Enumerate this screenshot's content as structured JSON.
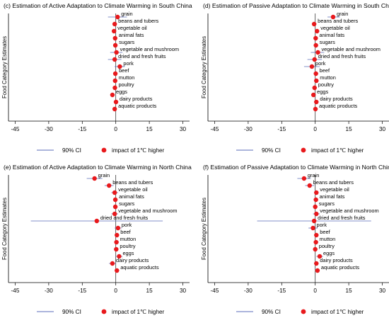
{
  "chart_data": [
    {
      "type": "scatter",
      "title": "(c) Estimation of Active Adaptation to Climate Warming in South China",
      "ylabel": "Food Category Estimates",
      "xlim": [
        -48,
        33
      ],
      "xticks": [
        -45,
        -30,
        -15,
        0,
        15,
        30
      ],
      "reference_line": 0,
      "legend": {
        "position": "bottom",
        "ci_label": "90% CI",
        "point_label": "impact of 1℃ higher"
      },
      "points": [
        {
          "category": "grain",
          "estimate": 0.8,
          "ci_low": -3.5,
          "ci_high": 5.0
        },
        {
          "category": "beans and tubers",
          "estimate": -0.5,
          "ci_low": -1.5,
          "ci_high": 0.5
        },
        {
          "category": "vegetable oil",
          "estimate": -0.8,
          "ci_low": -1.8,
          "ci_high": 0.2
        },
        {
          "category": "animal fats",
          "estimate": -0.3,
          "ci_low": -1.2,
          "ci_high": 0.6
        },
        {
          "category": "sugars",
          "estimate": -0.2,
          "ci_low": -1.0,
          "ci_high": 0.6
        },
        {
          "category": "vegetable and mushroom",
          "estimate": 0.3,
          "ci_low": -2.5,
          "ci_high": 3.0
        },
        {
          "category": "dried and fresh fruits",
          "estimate": -0.5,
          "ci_low": -3.5,
          "ci_high": 2.5
        },
        {
          "category": "pork",
          "estimate": 1.8,
          "ci_low": -0.5,
          "ci_high": 4.0
        },
        {
          "category": "beef",
          "estimate": -0.2,
          "ci_low": -1.0,
          "ci_high": 0.6
        },
        {
          "category": "mutton",
          "estimate": -0.3,
          "ci_low": -1.2,
          "ci_high": 0.6
        },
        {
          "category": "poultry",
          "estimate": -0.4,
          "ci_low": -1.3,
          "ci_high": 0.5
        },
        {
          "category": "eggs",
          "estimate": -1.5,
          "ci_low": -2.5,
          "ci_high": -0.5
        },
        {
          "category": "dairy products",
          "estimate": 0.1,
          "ci_low": -0.8,
          "ci_high": 1.0
        },
        {
          "category": "aquatic products",
          "estimate": -0.5,
          "ci_low": -1.3,
          "ci_high": 0.3
        }
      ]
    },
    {
      "type": "scatter",
      "title": "(d) Estimation of Passive Adaptation to Climate Warming in South China",
      "ylabel": "Food Category Estimates",
      "xlim": [
        -48,
        33
      ],
      "xticks": [
        -45,
        -30,
        -15,
        0,
        15,
        30
      ],
      "reference_line": 0,
      "legend": {
        "position": "bottom",
        "ci_label": "90% CI",
        "point_label": "impact of 1℃ higher"
      },
      "points": [
        {
          "category": "grain",
          "estimate": 8.0,
          "ci_low": 5.5,
          "ci_high": 11.0
        },
        {
          "category": "beans and tubers",
          "estimate": -0.5,
          "ci_low": -1.5,
          "ci_high": 0.5
        },
        {
          "category": "vegetable oil",
          "estimate": 0.8,
          "ci_low": -0.2,
          "ci_high": 1.8
        },
        {
          "category": "animal fats",
          "estimate": 0.2,
          "ci_low": -0.8,
          "ci_high": 1.2
        },
        {
          "category": "sugars",
          "estimate": 0.3,
          "ci_low": -0.7,
          "ci_high": 1.3
        },
        {
          "category": "vegetable and mushroom",
          "estimate": 1.2,
          "ci_low": -2.0,
          "ci_high": 4.0
        },
        {
          "category": "dried and fresh fruits",
          "estimate": -0.3,
          "ci_low": -3.5,
          "ci_high": 3.0
        },
        {
          "category": "pork",
          "estimate": -1.5,
          "ci_low": -5.0,
          "ci_high": 2.0
        },
        {
          "category": "beef",
          "estimate": 0.3,
          "ci_low": -0.7,
          "ci_high": 1.3
        },
        {
          "category": "mutton",
          "estimate": 0.5,
          "ci_low": -0.5,
          "ci_high": 1.5
        },
        {
          "category": "poultry",
          "estimate": -0.3,
          "ci_low": -1.3,
          "ci_high": 0.7
        },
        {
          "category": "eggs",
          "estimate": -0.8,
          "ci_low": -1.8,
          "ci_high": 0.2
        },
        {
          "category": "dairy products",
          "estimate": 0.5,
          "ci_low": -0.5,
          "ci_high": 1.5
        },
        {
          "category": "aquatic products",
          "estimate": 0.1,
          "ci_low": -0.9,
          "ci_high": 1.1
        }
      ]
    },
    {
      "type": "scatter",
      "title": "(e) Estimation of Active Adaptation to Climate Warming in North China",
      "ylabel": "Food Category Estimates",
      "xlim": [
        -48,
        33
      ],
      "xticks": [
        -45,
        -30,
        -15,
        0,
        15,
        30
      ],
      "reference_line": 0,
      "legend": {
        "position": "bottom",
        "ci_label": "90% CI",
        "point_label": "impact of 1℃ higher"
      },
      "points": [
        {
          "category": "grain",
          "estimate": -9.5,
          "ci_low": -13.0,
          "ci_high": -6.0
        },
        {
          "category": "beans and tubers",
          "estimate": -3.0,
          "ci_low": -5.0,
          "ci_high": -1.0
        },
        {
          "category": "vegetable oil",
          "estimate": -0.5,
          "ci_low": -2.0,
          "ci_high": 1.0
        },
        {
          "category": "animal fats",
          "estimate": -0.2,
          "ci_low": -1.2,
          "ci_high": 0.8
        },
        {
          "category": "sugars",
          "estimate": -0.2,
          "ci_low": -1.2,
          "ci_high": 0.8
        },
        {
          "category": "vegetable and mushroom",
          "estimate": -0.5,
          "ci_low": -2.0,
          "ci_high": 1.0
        },
        {
          "category": "dried and fresh fruits",
          "estimate": -8.5,
          "ci_low": -38.0,
          "ci_high": 21.0
        },
        {
          "category": "pork",
          "estimate": 1.0,
          "ci_low": -0.5,
          "ci_high": 2.5
        },
        {
          "category": "beef",
          "estimate": 0.5,
          "ci_low": -0.5,
          "ci_high": 1.5
        },
        {
          "category": "mutton",
          "estimate": 0.3,
          "ci_low": -0.7,
          "ci_high": 1.3
        },
        {
          "category": "poultry",
          "estimate": 0.2,
          "ci_low": -0.8,
          "ci_high": 1.2
        },
        {
          "category": "eggs",
          "estimate": 1.5,
          "ci_low": 0.0,
          "ci_high": 3.0
        },
        {
          "category": "dairy products",
          "estimate": -1.5,
          "ci_low": -3.0,
          "ci_high": 0.0
        },
        {
          "category": "aquatic products",
          "estimate": 0.5,
          "ci_low": -0.5,
          "ci_high": 1.5
        }
      ]
    },
    {
      "type": "scatter",
      "title": "(f) Estimation of Passive Adaptation to Climate Warming in North China",
      "ylabel": "Food Category Estimates",
      "xlim": [
        -48,
        33
      ],
      "xticks": [
        -45,
        -30,
        -15,
        0,
        15,
        30
      ],
      "reference_line": 0,
      "legend": {
        "position": "bottom",
        "ci_label": "90% CI",
        "point_label": "impact of 1℃ higher"
      },
      "points": [
        {
          "category": "grain",
          "estimate": -5.0,
          "ci_low": -8.0,
          "ci_high": -2.0
        },
        {
          "category": "beans and tubers",
          "estimate": -2.5,
          "ci_low": -4.5,
          "ci_high": -0.5
        },
        {
          "category": "vegetable oil",
          "estimate": 0.5,
          "ci_low": -0.5,
          "ci_high": 1.5
        },
        {
          "category": "animal fats",
          "estimate": 0.3,
          "ci_low": -0.7,
          "ci_high": 1.3
        },
        {
          "category": "sugars",
          "estimate": 0.0,
          "ci_low": -1.0,
          "ci_high": 1.0
        },
        {
          "category": "vegetable and mushroom",
          "estimate": 0.5,
          "ci_low": -1.0,
          "ci_high": 2.0
        },
        {
          "category": "dried and fresh fruits",
          "estimate": -0.5,
          "ci_low": -26.0,
          "ci_high": 25.0
        },
        {
          "category": "pork",
          "estimate": -1.0,
          "ci_low": -3.0,
          "ci_high": 1.0
        },
        {
          "category": "beef",
          "estimate": 0.5,
          "ci_low": -0.5,
          "ci_high": 1.5
        },
        {
          "category": "mutton",
          "estimate": 0.3,
          "ci_low": -0.7,
          "ci_high": 1.3
        },
        {
          "category": "poultry",
          "estimate": 0.0,
          "ci_low": -1.0,
          "ci_high": 1.0
        },
        {
          "category": "eggs",
          "estimate": 2.0,
          "ci_low": 0.5,
          "ci_high": 3.5
        },
        {
          "category": "dairy products",
          "estimate": 0.5,
          "ci_low": -0.5,
          "ci_high": 1.5
        },
        {
          "category": "aquatic products",
          "estimate": 1.0,
          "ci_low": 0.0,
          "ci_high": 2.0
        }
      ]
    }
  ],
  "colors": {
    "ci_line": "#5a6bb8",
    "point": "#e8191c",
    "axis": "#000000",
    "reference": "#222222"
  }
}
